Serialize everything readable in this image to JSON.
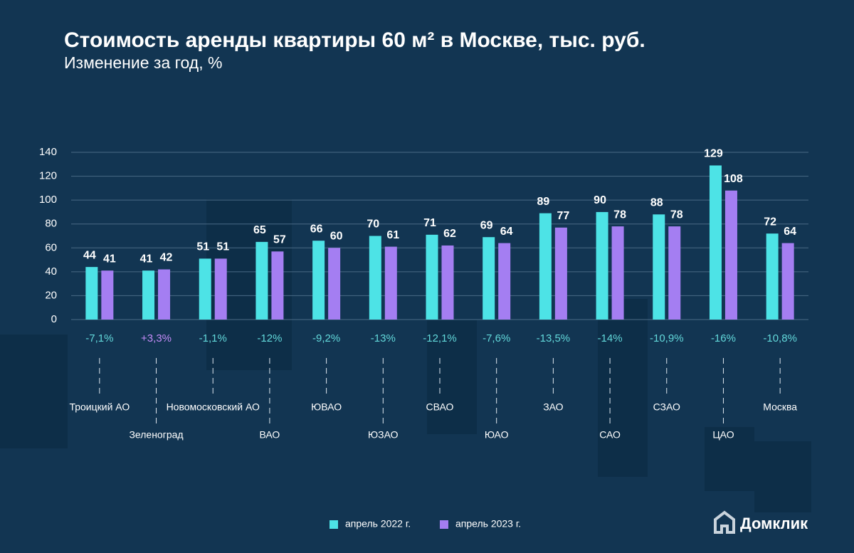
{
  "chart_data": {
    "type": "bar",
    "title": "Стоимость аренды квартиры 60 м² в Москве, тыс. руб.",
    "subtitle": "Изменение за год, %",
    "categories": [
      "Троицкий АО",
      "Зеленоград",
      "Новомосковский АО",
      "ВАО",
      "ЮВАО",
      "ЮЗАО",
      "СВАО",
      "ЮАО",
      "ЗАО",
      "САО",
      "СЗАО",
      "ЦАО",
      "Москва"
    ],
    "series": [
      {
        "name": "апрель 2022 г.",
        "color": "#4de3e6",
        "values": [
          44,
          41,
          51,
          65,
          66,
          70,
          71,
          69,
          89,
          90,
          88,
          129,
          72
        ]
      },
      {
        "name": "апрель 2023 г.",
        "color": "#a47ef2",
        "values": [
          41,
          42,
          51,
          57,
          60,
          61,
          62,
          64,
          77,
          78,
          78,
          108,
          64
        ]
      }
    ],
    "annotations": [
      "-7,1%",
      "+3,3%",
      "-1,1%",
      "-12%",
      "-9,2%",
      "-13%",
      "-12,1%",
      "-7,6%",
      "-13,5%",
      "-14%",
      "-10,9%",
      "-16%",
      "-10,8%"
    ],
    "ylim": [
      0,
      140
    ],
    "yticks": [
      0,
      20,
      40,
      60,
      80,
      100,
      120,
      140
    ],
    "grid": true,
    "legend": "bottom"
  },
  "brand": "Домклик"
}
